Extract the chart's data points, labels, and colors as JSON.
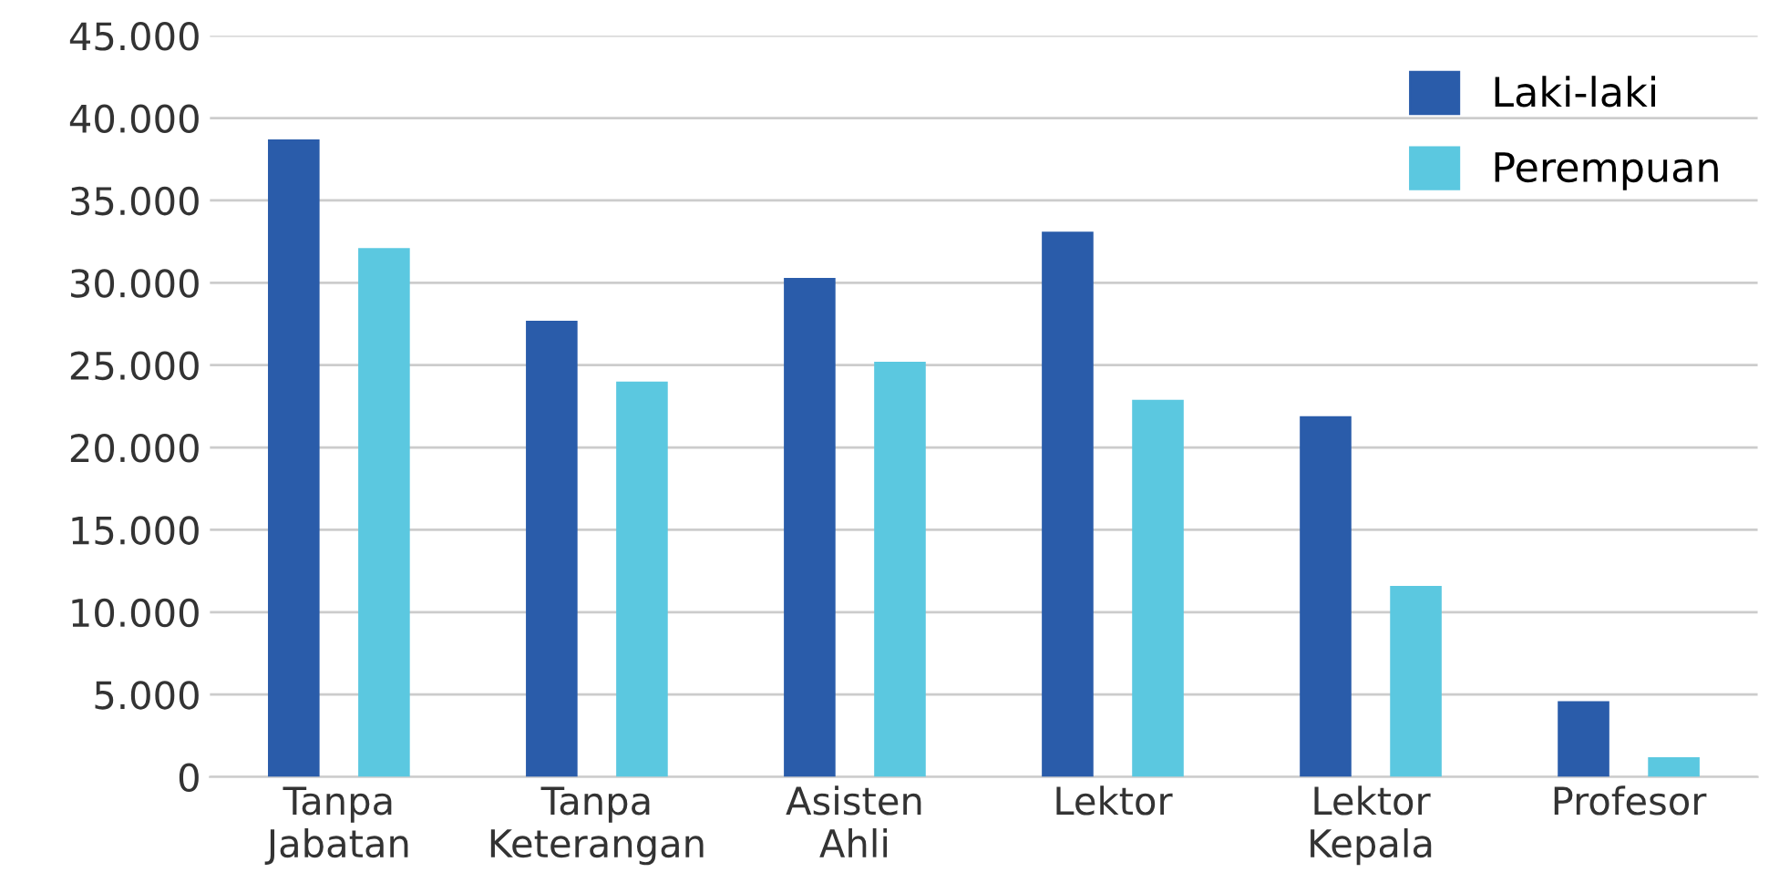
{
  "chart_data": {
    "type": "bar",
    "categories": [
      "Tanpa\nJabatan",
      "Tanpa\nKeterangan",
      "Asisten\nAhli",
      "Lektor",
      "Lektor\nKepala",
      "Profesor"
    ],
    "series": [
      {
        "name": "Laki-laki",
        "color": "#2a5caa",
        "values": [
          38700,
          27700,
          30300,
          33100,
          21900,
          4600
        ]
      },
      {
        "name": "Perempuan",
        "color": "#5bc8e0",
        "values": [
          32100,
          24000,
          25200,
          22900,
          11600,
          1200
        ]
      }
    ],
    "ylim": [
      0,
      45000
    ],
    "yticks": [
      {
        "value": 0,
        "label": "0"
      },
      {
        "value": 5000,
        "label": "5.000"
      },
      {
        "value": 10000,
        "label": "10.000"
      },
      {
        "value": 15000,
        "label": "15.000"
      },
      {
        "value": 20000,
        "label": "20.000"
      },
      {
        "value": 25000,
        "label": "25.000"
      },
      {
        "value": 30000,
        "label": "30.000"
      },
      {
        "value": 35000,
        "label": "35.000"
      },
      {
        "value": 40000,
        "label": "40.000"
      },
      {
        "value": 45000,
        "label": "45.000"
      }
    ],
    "grid": "y",
    "legend": "top right"
  }
}
